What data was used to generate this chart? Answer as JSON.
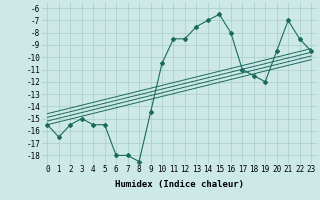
{
  "x": [
    0,
    1,
    2,
    3,
    4,
    5,
    6,
    7,
    8,
    9,
    10,
    11,
    12,
    13,
    14,
    15,
    16,
    17,
    18,
    19,
    20,
    21,
    22,
    23
  ],
  "y": [
    -15.5,
    -16.5,
    -15.5,
    -15,
    -15.5,
    -15.5,
    -18,
    -18,
    -18.5,
    -14.5,
    -10.5,
    -8.5,
    -8.5,
    -7.5,
    -7,
    -6.5,
    -8,
    -11,
    -11.5,
    -12,
    -9.5,
    -7,
    -8.5,
    -9.5
  ],
  "line_color": "#1a6b5a",
  "marker": "D",
  "markersize": 2.0,
  "linewidth": 0.8,
  "reg_lines": [
    {
      "x0": 0,
      "y0": -15.5,
      "x1": 23,
      "y1": -10.2
    },
    {
      "x0": 0,
      "y0": -15.2,
      "x1": 23,
      "y1": -9.9
    },
    {
      "x0": 0,
      "y0": -14.9,
      "x1": 23,
      "y1": -9.6
    },
    {
      "x0": 0,
      "y0": -14.6,
      "x1": 23,
      "y1": -9.3
    }
  ],
  "reg_color": "#1a6b5a",
  "reg_linewidth": 0.7,
  "xlim": [
    -0.5,
    23.5
  ],
  "ylim": [
    -18.7,
    -5.5
  ],
  "yticks": [
    -6,
    -7,
    -8,
    -9,
    -10,
    -11,
    -12,
    -13,
    -14,
    -15,
    -16,
    -17,
    -18
  ],
  "xticks": [
    0,
    1,
    2,
    3,
    4,
    5,
    6,
    7,
    8,
    9,
    10,
    11,
    12,
    13,
    14,
    15,
    16,
    17,
    18,
    19,
    20,
    21,
    22,
    23
  ],
  "xlabel": "Humidex (Indice chaleur)",
  "bg_color": "#cce9e8",
  "grid_color": "#aacccc",
  "tick_fontsize": 5.5,
  "xlabel_fontsize": 6.5
}
